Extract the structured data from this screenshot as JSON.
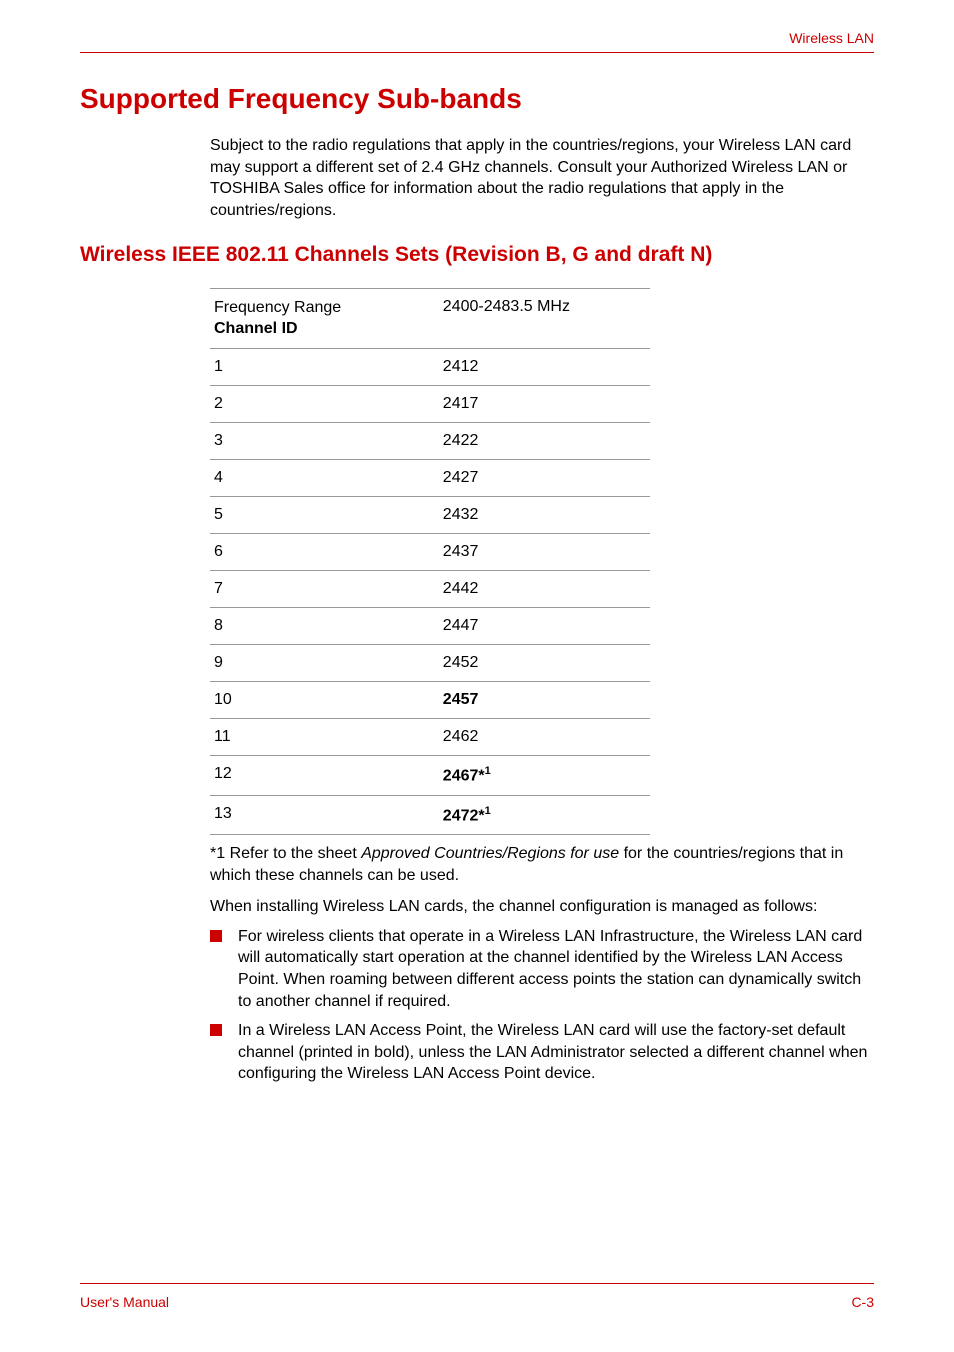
{
  "header": {
    "section": "Wireless LAN"
  },
  "title": "Supported Frequency Sub-bands",
  "intro": "Subject to the radio regulations that apply in the countries/regions, your Wireless LAN card may support a different set of 2.4 GHz channels. Consult your Authorized Wireless LAN or TOSHIBA Sales office for information about the radio regulations that apply in the countries/regions.",
  "subtitle": "Wireless IEEE 802.11 Channels Sets (Revision B, G and draft N)",
  "table": {
    "header_left_line1": "Frequency Range",
    "header_left_line2": "Channel ID",
    "header_right": "2400-2483.5 MHz",
    "rows": [
      {
        "id": "1",
        "freq": "2412",
        "bold": false,
        "sup": ""
      },
      {
        "id": "2",
        "freq": "2417",
        "bold": false,
        "sup": ""
      },
      {
        "id": "3",
        "freq": "2422",
        "bold": false,
        "sup": ""
      },
      {
        "id": "4",
        "freq": "2427",
        "bold": false,
        "sup": ""
      },
      {
        "id": "5",
        "freq": "2432",
        "bold": false,
        "sup": ""
      },
      {
        "id": "6",
        "freq": "2437",
        "bold": false,
        "sup": ""
      },
      {
        "id": "7",
        "freq": "2442",
        "bold": false,
        "sup": ""
      },
      {
        "id": "8",
        "freq": "2447",
        "bold": false,
        "sup": ""
      },
      {
        "id": "9",
        "freq": "2452",
        "bold": false,
        "sup": ""
      },
      {
        "id": "10",
        "freq": "2457",
        "bold": true,
        "sup": ""
      },
      {
        "id": "11",
        "freq": "2462",
        "bold": false,
        "sup": ""
      },
      {
        "id": "12",
        "freq": "2467*",
        "bold": true,
        "sup": "1"
      },
      {
        "id": "13",
        "freq": "2472*",
        "bold": true,
        "sup": "1"
      }
    ]
  },
  "footnote_prefix": "*1 Refer to the sheet ",
  "footnote_italic": "Approved Countries/Regions for use",
  "footnote_suffix": " for the countries/regions that in which these channels can be used.",
  "install_para": "When installing Wireless LAN cards, the channel configuration is managed as follows:",
  "bullets": [
    "For wireless clients that operate in a Wireless LAN Infrastructure, the Wireless LAN card will automatically start operation at the channel identified by the Wireless LAN Access Point. When roaming between different access points the station can dynamically switch to another channel if required.",
    "In a Wireless LAN Access Point, the Wireless LAN card will use the factory-set default channel (printed in bold), unless the LAN Administrator selected a different channel when configuring the Wireless LAN Access Point device."
  ],
  "footer": {
    "left": "User's Manual",
    "right": "C-3"
  }
}
